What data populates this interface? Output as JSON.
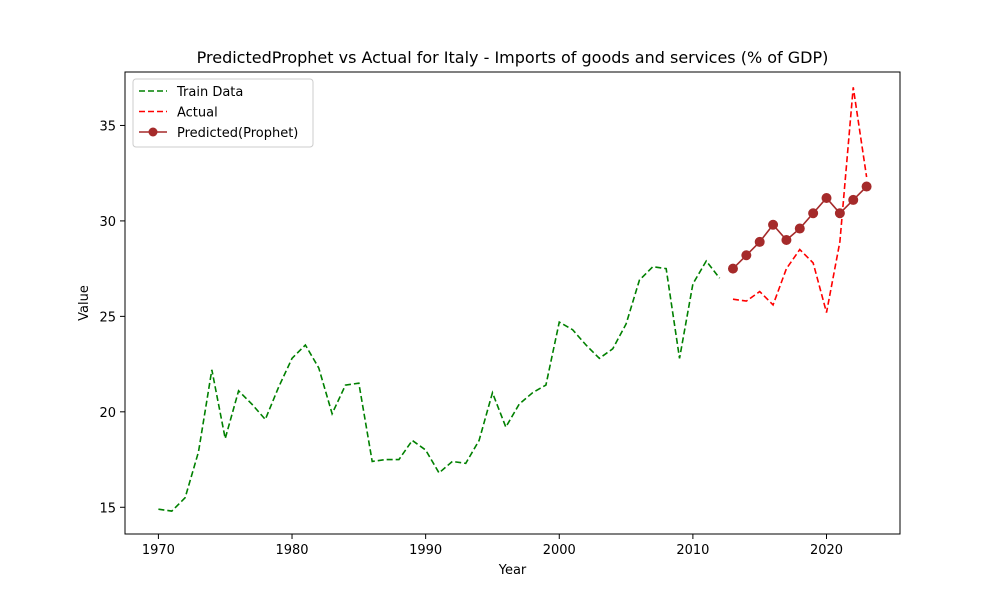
{
  "chart_data": {
    "type": "line",
    "title": "PredictedProphet vs Actual for Italy - Imports of goods and services (% of GDP)",
    "xlabel": "Year",
    "ylabel": "Value",
    "xlim": [
      1967.5,
      2025.5
    ],
    "ylim": [
      13.6,
      37.8
    ],
    "xticks": [
      1970,
      1980,
      1990,
      2000,
      2010,
      2020
    ],
    "yticks": [
      15,
      20,
      25,
      30,
      35
    ],
    "legend_position": "upper-left",
    "series": [
      {
        "name": "Train Data",
        "style": "dashed",
        "color": "#008000",
        "x": [
          1970,
          1971,
          1972,
          1973,
          1974,
          1975,
          1976,
          1977,
          1978,
          1979,
          1980,
          1981,
          1982,
          1983,
          1984,
          1985,
          1986,
          1987,
          1988,
          1989,
          1990,
          1991,
          1992,
          1993,
          1994,
          1995,
          1996,
          1997,
          1998,
          1999,
          2000,
          2001,
          2002,
          2003,
          2004,
          2005,
          2006,
          2007,
          2008,
          2009,
          2010,
          2011,
          2012
        ],
        "y": [
          14.9,
          14.8,
          15.5,
          17.9,
          22.2,
          18.6,
          21.1,
          20.4,
          19.6,
          21.3,
          22.8,
          23.5,
          22.3,
          19.9,
          21.4,
          21.5,
          17.4,
          17.5,
          17.5,
          18.5,
          18.0,
          16.8,
          17.4,
          17.3,
          18.5,
          21.0,
          19.2,
          20.4,
          21.0,
          21.4,
          24.7,
          24.3,
          23.5,
          22.8,
          23.3,
          24.6,
          26.9,
          27.6,
          27.5,
          22.8,
          26.7,
          27.9,
          27.0
        ]
      },
      {
        "name": "Actual",
        "style": "dashed",
        "color": "#ff0000",
        "x": [
          2013,
          2014,
          2015,
          2016,
          2017,
          2018,
          2019,
          2020,
          2021,
          2022,
          2023
        ],
        "y": [
          25.9,
          25.8,
          26.3,
          25.6,
          27.5,
          28.5,
          27.8,
          25.2,
          28.9,
          37.0,
          32.3
        ]
      },
      {
        "name": "Predicted(Prophet)",
        "style": "solid-markers",
        "color": "#a52a2a",
        "x": [
          2013,
          2014,
          2015,
          2016,
          2017,
          2018,
          2019,
          2020,
          2021,
          2022,
          2023
        ],
        "y": [
          27.5,
          28.2,
          28.9,
          29.8,
          29.0,
          29.6,
          30.4,
          31.2,
          30.4,
          31.1,
          31.8
        ]
      }
    ]
  }
}
